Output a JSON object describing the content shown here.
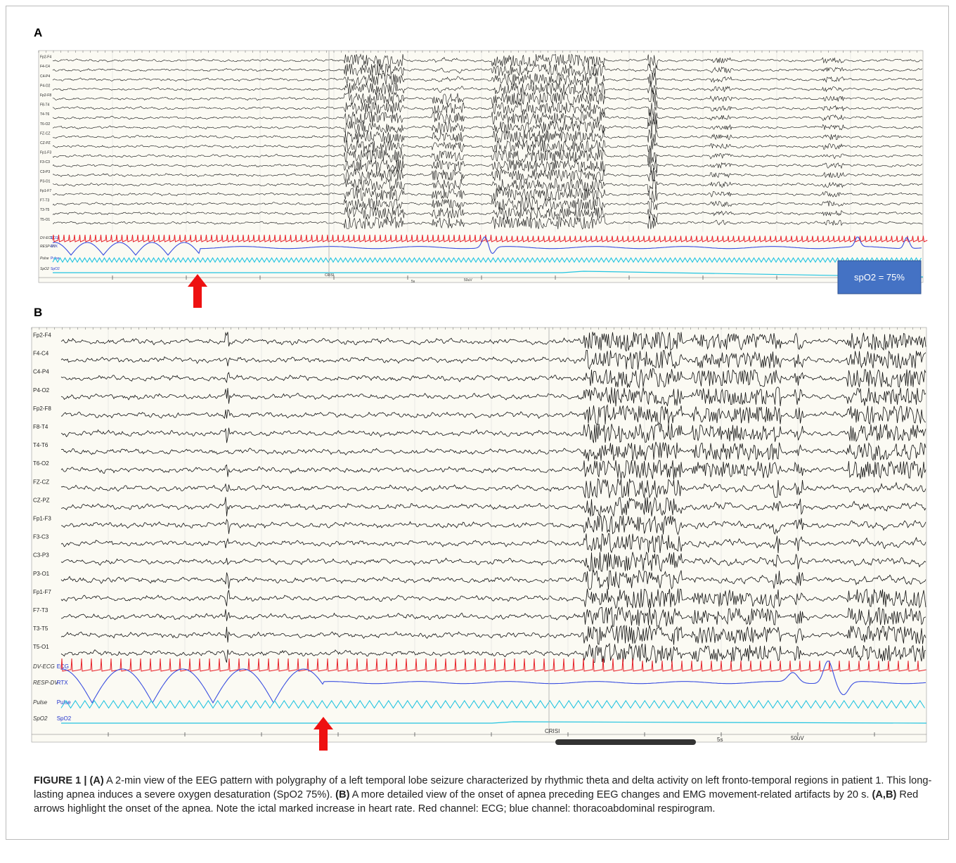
{
  "panels": [
    {
      "label": "A",
      "spo2_box": "spO2 = 75%"
    },
    {
      "label": "B"
    }
  ],
  "channels": [
    "Fp2-F4",
    "F4-C4",
    "C4-P4",
    "P4-O2",
    "Fp2-F8",
    "F8-T4",
    "T4-T6",
    "T6-O2",
    "FZ-CZ",
    "CZ-PZ",
    "Fp1-F3",
    "F3-C3",
    "C3-P3",
    "P3-O1",
    "Fp1-F7",
    "F7-T3",
    "T3-T5",
    "T5-O1"
  ],
  "polygraphy": [
    {
      "name": "DV-ECG",
      "unit": "ECG"
    },
    {
      "name": "RESP-DV",
      "unit": "RTX"
    },
    {
      "name": "Pulse",
      "unit": "Pulse"
    },
    {
      "name": "SpO2",
      "unit": "SpO2"
    }
  ],
  "markers": {
    "event": "CRISI",
    "time_scale": "5s",
    "amplitude_scale": "50uV"
  },
  "caption": [
    {
      "text": "FIGURE 1 | ",
      "bold": true
    },
    {
      "text": "(A)",
      "bold": true
    },
    {
      "text": " A 2-min view of the EEG pattern with polygraphy of a left temporal lobe seizure characterized by rhythmic theta and delta activity on left fronto-temporal regions in patient 1. This long-lasting apnea induces a severe oxygen desaturation (SpO2 75%). ",
      "bold": false
    },
    {
      "text": "(B)",
      "bold": true
    },
    {
      "text": " A more detailed view of the onset of apnea preceding EEG changes and EMG movement-related artifacts by 20 s. ",
      "bold": false
    },
    {
      "text": "(A,B)",
      "bold": true
    },
    {
      "text": " Red arrows highlight the onset of the apnea. Note the ictal marked increase in heart rate. Red channel: ECG; blue channel: thoracoabdominal respirogram.",
      "bold": false
    }
  ]
}
